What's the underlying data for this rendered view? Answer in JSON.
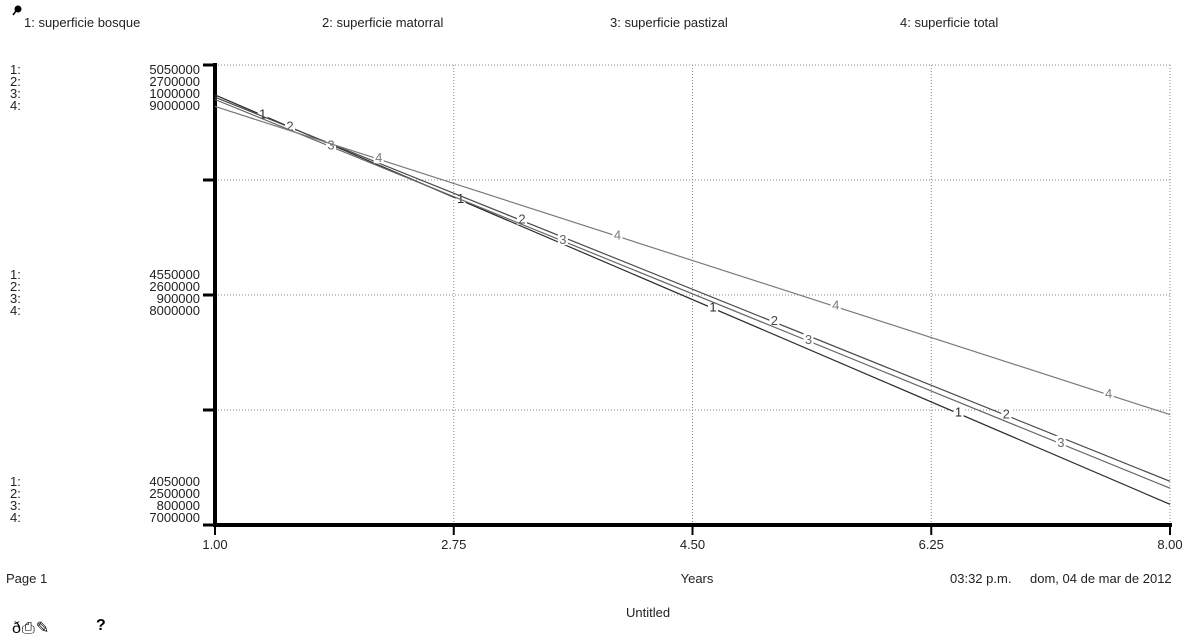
{
  "window": {
    "page_label": "Page 1",
    "time_label": "03:32 p.m.",
    "date_label": "dom, 04 de mar de 2012",
    "document_title": "Untitled"
  },
  "legend": {
    "pin_icon": "pin-icon",
    "items": [
      {
        "text": "1: superficie bosque"
      },
      {
        "text": "2: superficie matorral"
      },
      {
        "text": "3: superficie pastizal"
      },
      {
        "text": "4: superficie total"
      }
    ]
  },
  "toolbar": {
    "icons": [
      "lock-icon",
      "print-icon",
      "pen-icon"
    ],
    "lock_glyph": "ð",
    "print_glyph": "⎙",
    "pen_glyph": "✎",
    "help_glyph": "?"
  },
  "chart_data": {
    "type": "line",
    "xlabel": "Years",
    "xlim": [
      1.0,
      8.0
    ],
    "x_ticks": [
      "1.00",
      "2.75",
      "4.50",
      "6.25",
      "8.00"
    ],
    "grid": true,
    "legend_position": "top",
    "scales": [
      {
        "series": "1",
        "prefix": "1:",
        "top": "5050000",
        "mid": "4550000",
        "bottom": "4050000",
        "min": 4050000,
        "max": 5050000
      },
      {
        "series": "2",
        "prefix": "2:",
        "top": "2700000",
        "mid": "2600000",
        "bottom": "2500000",
        "min": 2500000,
        "max": 2700000
      },
      {
        "series": "3",
        "prefix": "3:",
        "top": "1000000",
        "mid": "900000",
        "bottom": "800000",
        "min": 800000,
        "max": 1000000
      },
      {
        "series": "4",
        "prefix": "4:",
        "top": "9000000",
        "mid": "8000000",
        "bottom": "7000000",
        "min": 7000000,
        "max": 9000000
      }
    ],
    "series": [
      {
        "name": "superficie bosque",
        "id": "1",
        "x": [
          1.0,
          8.0
        ],
        "values": [
          4985000,
          4095000
        ]
      },
      {
        "name": "superficie matorral",
        "id": "2",
        "x": [
          1.0,
          8.0
        ],
        "values": [
          2686000,
          2519000
        ]
      },
      {
        "name": "superficie pastizal",
        "id": "3",
        "x": [
          1.0,
          8.0
        ],
        "values": [
          985000,
          816000
        ]
      },
      {
        "name": "superficie total",
        "id": "4",
        "x": [
          1.0,
          8.0
        ],
        "values": [
          8820000,
          7480000
        ]
      }
    ],
    "series_markers": [
      {
        "series": "1",
        "x": [
          1.35,
          2.8,
          4.65,
          6.45
        ]
      },
      {
        "series": "2",
        "x": [
          1.55,
          3.25,
          5.1,
          6.8
        ]
      },
      {
        "series": "3",
        "x": [
          1.85,
          3.55,
          5.35,
          7.2
        ]
      },
      {
        "series": "4",
        "x": [
          2.2,
          3.95,
          5.55,
          7.55
        ]
      }
    ],
    "colors": {
      "1": "#2a2a2a",
      "2": "#4a4a4a",
      "3": "#666666",
      "4": "#7a7a7a"
    }
  }
}
